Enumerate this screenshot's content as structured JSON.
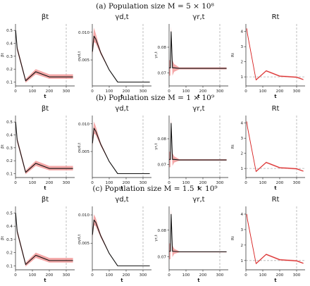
{
  "captions": [
    "(a) Population size M = 5 × 10⁸",
    "(b) Population size M = 1 × 10⁹",
    "(c) Population size M = 1.5 × 10⁹"
  ],
  "colors": {
    "band": "#f08b8b",
    "line_black": "#111111",
    "line_red": "#d62020",
    "reference": "#b0b0b0"
  },
  "chart_data": [
    {
      "type": "line",
      "row": 0,
      "title": "βt",
      "ylabel": "βt",
      "xlabel": "t",
      "xlim": [
        0,
        350
      ],
      "ylim": [
        0.07,
        0.55
      ],
      "xticks": [
        0,
        100,
        200,
        300
      ],
      "yticks": [
        0.1,
        0.2,
        0.3,
        0.4,
        0.5
      ],
      "xticklabels": [
        "0",
        "100",
        "200",
        "300"
      ],
      "yticklabels": [
        "0.1",
        "0.2",
        "0.3",
        "0.4",
        "0.5"
      ],
      "vline": 300,
      "x": [
        1,
        10,
        60,
        120,
        200,
        300,
        340
      ],
      "y": [
        0.5,
        0.36,
        0.11,
        0.18,
        0.14,
        0.14,
        0.14
      ],
      "band_lower": [
        0.49,
        0.34,
        0.095,
        0.16,
        0.125,
        0.125,
        0.125
      ],
      "band_upper": [
        0.51,
        0.38,
        0.125,
        0.2,
        0.16,
        0.16,
        0.16
      ]
    },
    {
      "type": "line",
      "row": 0,
      "title": "γd,t",
      "ylabel": "γd,t",
      "xlabel": "t",
      "xlim": [
        0,
        350
      ],
      "ylim": [
        0.0003,
        0.0115
      ],
      "xticks": [
        0,
        100,
        200,
        300
      ],
      "yticks": [
        0.005,
        0.01
      ],
      "xticklabels": [
        "0",
        "100",
        "200",
        "300"
      ],
      "yticklabels": [
        "0.005",
        "0.010"
      ],
      "vline": 300,
      "x": [
        1,
        10,
        20,
        50,
        100,
        150,
        340
      ],
      "y": [
        0.0065,
        0.0093,
        0.0088,
        0.0063,
        0.0032,
        0.001,
        0.001
      ],
      "band_lower": [
        0.0058,
        0.0082,
        0.008,
        0.006,
        0.0031,
        0.001,
        0.001
      ],
      "band_upper": [
        0.0078,
        0.0108,
        0.0098,
        0.0066,
        0.0033,
        0.001,
        0.001
      ]
    },
    {
      "type": "line",
      "row": 0,
      "title": "γr,t",
      "ylabel": "γr,t",
      "xlabel": "t",
      "xlim": [
        0,
        350
      ],
      "ylim": [
        0.065,
        0.089
      ],
      "xticks": [
        0,
        100,
        200,
        300
      ],
      "yticks": [
        0.07,
        0.08
      ],
      "xticklabels": [
        "0",
        "100",
        "200",
        "300"
      ],
      "yticklabels": [
        "0.07",
        "0.08"
      ],
      "vline": 300,
      "x": [
        1,
        8,
        12,
        20,
        30,
        60,
        340
      ],
      "y": [
        0.072,
        0.072,
        0.086,
        0.072,
        0.072,
        0.0718,
        0.0718
      ],
      "band_lower": [
        0.069,
        0.069,
        0.084,
        0.069,
        0.0705,
        0.0714,
        0.0714
      ],
      "band_upper": [
        0.075,
        0.075,
        0.088,
        0.075,
        0.0735,
        0.0722,
        0.0722
      ]
    },
    {
      "type": "line",
      "row": 0,
      "title": "Rt",
      "ylabel": "Rt",
      "xlabel": "t",
      "xlim": [
        0,
        350
      ],
      "ylim": [
        0.4,
        4.5
      ],
      "xticks": [
        0,
        100,
        200,
        300
      ],
      "yticks": [
        1,
        2,
        3,
        4
      ],
      "xticklabels": [
        "0",
        "100",
        "200",
        "300"
      ],
      "yticklabels": [
        "1",
        "2",
        "3",
        "4"
      ],
      "vline": 300,
      "hline": 1,
      "x": [
        5,
        10,
        60,
        120,
        200,
        300,
        340
      ],
      "y": [
        4.2,
        3.8,
        0.8,
        1.4,
        1.05,
        0.98,
        0.82
      ],
      "band_lower": [
        4.1,
        3.7,
        0.75,
        1.35,
        1.0,
        0.93,
        0.78
      ],
      "band_upper": [
        4.3,
        3.9,
        0.85,
        1.45,
        1.1,
        1.03,
        0.86
      ]
    },
    {
      "type": "line",
      "row": 1,
      "title": "βt",
      "ylabel": "βt",
      "xlabel": "t",
      "xlim": [
        0,
        350
      ],
      "ylim": [
        0.07,
        0.55
      ],
      "xticks": [
        0,
        100,
        200,
        300
      ],
      "yticks": [
        0.1,
        0.2,
        0.3,
        0.4,
        0.5
      ],
      "xticklabels": [
        "0",
        "100",
        "200",
        "300"
      ],
      "yticklabels": [
        "0.1",
        "0.2",
        "0.3",
        "0.4",
        "0.5"
      ],
      "vline": 300,
      "x": [
        1,
        10,
        60,
        120,
        200,
        300,
        340
      ],
      "y": [
        0.5,
        0.36,
        0.11,
        0.18,
        0.14,
        0.14,
        0.14
      ],
      "band_lower": [
        0.49,
        0.34,
        0.095,
        0.16,
        0.125,
        0.125,
        0.125
      ],
      "band_upper": [
        0.51,
        0.38,
        0.125,
        0.2,
        0.16,
        0.16,
        0.16
      ]
    },
    {
      "type": "line",
      "row": 1,
      "title": "γd,t",
      "ylabel": "γd,t",
      "xlabel": "t",
      "xlim": [
        0,
        350
      ],
      "ylim": [
        0.0003,
        0.0115
      ],
      "xticks": [
        0,
        100,
        200,
        300
      ],
      "yticks": [
        0.005,
        0.01
      ],
      "xticklabels": [
        "0",
        "100",
        "200",
        "300"
      ],
      "yticklabels": [
        "0.005",
        "0.010"
      ],
      "vline": 300,
      "x": [
        1,
        10,
        20,
        50,
        100,
        150,
        340
      ],
      "y": [
        0.0065,
        0.0092,
        0.0087,
        0.0063,
        0.0032,
        0.001,
        0.001
      ],
      "band_lower": [
        0.0058,
        0.0082,
        0.008,
        0.006,
        0.0031,
        0.001,
        0.001
      ],
      "band_upper": [
        0.0076,
        0.0104,
        0.0096,
        0.0066,
        0.0033,
        0.001,
        0.001
      ]
    },
    {
      "type": "line",
      "row": 1,
      "title": "γr,t",
      "ylabel": "γr,t",
      "xlabel": "t",
      "xlim": [
        0,
        350
      ],
      "ylim": [
        0.065,
        0.089
      ],
      "xticks": [
        0,
        100,
        200,
        300
      ],
      "yticks": [
        0.07,
        0.08
      ],
      "xticklabels": [
        "0",
        "100",
        "200",
        "300"
      ],
      "yticklabels": [
        "0.07",
        "0.08"
      ],
      "vline": 300,
      "x": [
        1,
        8,
        12,
        20,
        30,
        60,
        340
      ],
      "y": [
        0.072,
        0.072,
        0.086,
        0.072,
        0.072,
        0.0718,
        0.0718
      ],
      "band_lower": [
        0.069,
        0.069,
        0.084,
        0.0695,
        0.0708,
        0.0715,
        0.0715
      ],
      "band_upper": [
        0.075,
        0.075,
        0.088,
        0.0745,
        0.0732,
        0.0721,
        0.0721
      ]
    },
    {
      "type": "line",
      "row": 1,
      "title": "Rt",
      "ylabel": "Rt",
      "xlabel": "t",
      "xlim": [
        0,
        350
      ],
      "ylim": [
        0.4,
        4.5
      ],
      "xticks": [
        0,
        100,
        200,
        300
      ],
      "yticks": [
        1,
        2,
        3,
        4
      ],
      "xticklabels": [
        "0",
        "100",
        "200",
        "300"
      ],
      "yticklabels": [
        "1",
        "2",
        "3",
        "4"
      ],
      "vline": 300,
      "hline": 1,
      "x": [
        5,
        10,
        60,
        120,
        200,
        300,
        340
      ],
      "y": [
        4.1,
        3.7,
        0.8,
        1.4,
        1.05,
        0.98,
        0.82
      ],
      "band_lower": [
        4.0,
        3.6,
        0.75,
        1.35,
        1.0,
        0.93,
        0.78
      ],
      "band_upper": [
        4.2,
        3.8,
        0.85,
        1.45,
        1.1,
        1.03,
        0.86
      ]
    },
    {
      "type": "line",
      "row": 2,
      "title": "βt",
      "ylabel": "βt",
      "xlabel": "t",
      "xlim": [
        0,
        350
      ],
      "ylim": [
        0.07,
        0.55
      ],
      "xticks": [
        0,
        100,
        200,
        300
      ],
      "yticks": [
        0.1,
        0.2,
        0.3,
        0.4,
        0.5
      ],
      "xticklabels": [
        "0",
        "100",
        "200",
        "300"
      ],
      "yticklabels": [
        "0.1",
        "0.2",
        "0.3",
        "0.4",
        "0.5"
      ],
      "vline": 300,
      "x": [
        1,
        10,
        60,
        120,
        200,
        300,
        340
      ],
      "y": [
        0.5,
        0.36,
        0.11,
        0.18,
        0.14,
        0.14,
        0.14
      ],
      "band_lower": [
        0.49,
        0.34,
        0.095,
        0.16,
        0.125,
        0.125,
        0.125
      ],
      "band_upper": [
        0.51,
        0.38,
        0.125,
        0.2,
        0.16,
        0.16,
        0.16
      ]
    },
    {
      "type": "line",
      "row": 2,
      "title": "γd,t",
      "ylabel": "γd,t",
      "xlabel": "t",
      "xlim": [
        0,
        350
      ],
      "ylim": [
        0.0003,
        0.0115
      ],
      "xticks": [
        0,
        100,
        200,
        300
      ],
      "yticks": [
        0.005,
        0.01
      ],
      "xticklabels": [
        "0",
        "100",
        "200",
        "300"
      ],
      "yticklabels": [
        "0.005",
        "0.010"
      ],
      "vline": 300,
      "x": [
        1,
        10,
        20,
        50,
        100,
        150,
        340
      ],
      "y": [
        0.0065,
        0.0091,
        0.0087,
        0.0063,
        0.0032,
        0.001,
        0.001
      ],
      "band_lower": [
        0.0058,
        0.0082,
        0.008,
        0.006,
        0.0031,
        0.001,
        0.001
      ],
      "band_upper": [
        0.0074,
        0.0101,
        0.0095,
        0.0066,
        0.0033,
        0.001,
        0.001
      ]
    },
    {
      "type": "line",
      "row": 2,
      "title": "γr,t",
      "ylabel": "γr,t",
      "xlabel": "t",
      "xlim": [
        0,
        350
      ],
      "ylim": [
        0.065,
        0.089
      ],
      "xticks": [
        0,
        100,
        200,
        300
      ],
      "yticks": [
        0.07,
        0.08
      ],
      "xticklabels": [
        "0",
        "100",
        "200",
        "300"
      ],
      "yticklabels": [
        "0.07",
        "0.08"
      ],
      "vline": 300,
      "x": [
        1,
        8,
        12,
        20,
        30,
        60,
        340
      ],
      "y": [
        0.072,
        0.072,
        0.086,
        0.072,
        0.072,
        0.0718,
        0.0718
      ],
      "band_lower": [
        0.069,
        0.069,
        0.084,
        0.0698,
        0.071,
        0.0716,
        0.0716
      ],
      "band_upper": [
        0.075,
        0.075,
        0.088,
        0.0742,
        0.073,
        0.072,
        0.072
      ]
    },
    {
      "type": "line",
      "row": 2,
      "title": "Rt",
      "ylabel": "Rt",
      "xlabel": "t",
      "xlim": [
        0,
        350
      ],
      "ylim": [
        0.4,
        4.5
      ],
      "xticks": [
        0,
        100,
        200,
        300
      ],
      "yticks": [
        1,
        2,
        3,
        4
      ],
      "xticklabels": [
        "0",
        "100",
        "200",
        "300"
      ],
      "yticklabels": [
        "1",
        "2",
        "3",
        "4"
      ],
      "vline": 300,
      "hline": 1,
      "x": [
        5,
        10,
        60,
        120,
        200,
        300,
        340
      ],
      "y": [
        4.0,
        3.6,
        0.8,
        1.4,
        1.05,
        0.98,
        0.82
      ],
      "band_lower": [
        3.9,
        3.5,
        0.75,
        1.35,
        1.0,
        0.93,
        0.78
      ],
      "band_upper": [
        4.1,
        3.7,
        0.85,
        1.45,
        1.1,
        1.03,
        0.86
      ]
    }
  ]
}
